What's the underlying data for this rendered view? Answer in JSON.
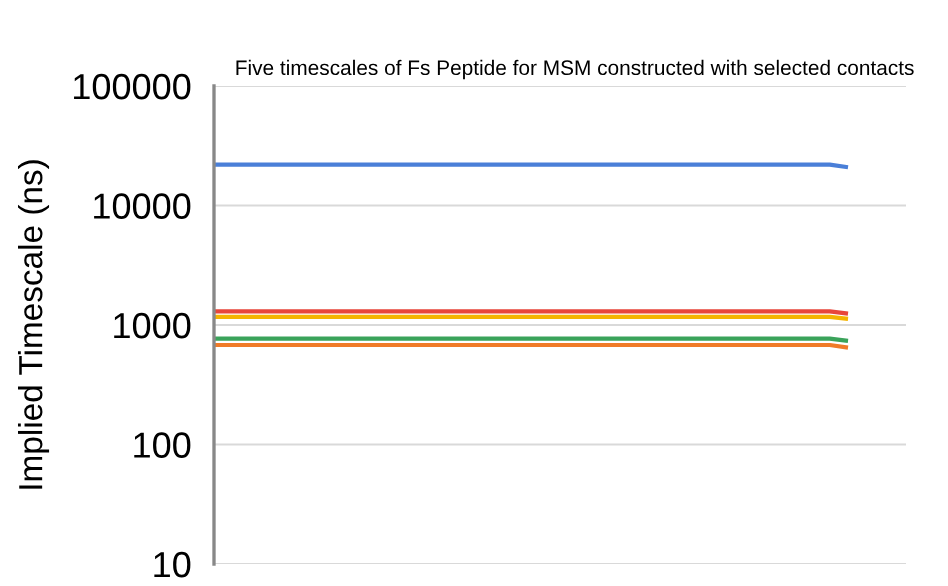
{
  "chart_data": {
    "type": "line",
    "title": "Five timescales of Fs Peptide for MSM constructed with selected contacts",
    "ylabel": "Implied Timescale (ns)",
    "categories": [
      null,
      null,
      null,
      null,
      null,
      null,
      null,
      null,
      null,
      null,
      null,
      null,
      null,
      null,
      null,
      null,
      null,
      null,
      null,
      null,
      null,
      null,
      null,
      null,
      null,
      null,
      null,
      null,
      null,
      null,
      null,
      null,
      null,
      null,
      null,
      null,
      null,
      null,
      null,
      null
    ],
    "series": [
      {
        "color": "#4a7fd8",
        "values": [
          22000,
          22000,
          22000,
          22000,
          22000,
          22000,
          22000,
          22000,
          22000,
          22000,
          22000,
          22000,
          22000,
          22000,
          22000,
          22000,
          22000,
          22000,
          22000,
          22000,
          22000,
          22000,
          22000,
          22000,
          22000,
          22000,
          22000,
          22000,
          22000,
          22000,
          22000,
          22000,
          22000,
          22000,
          22000,
          22000,
          22000,
          22000,
          22000,
          21000
        ]
      },
      {
        "color": "#e8463a",
        "values": [
          1300,
          1300,
          1300,
          1300,
          1300,
          1300,
          1300,
          1300,
          1300,
          1300,
          1300,
          1300,
          1300,
          1300,
          1300,
          1300,
          1300,
          1300,
          1300,
          1300,
          1300,
          1300,
          1300,
          1300,
          1300,
          1300,
          1300,
          1300,
          1300,
          1300,
          1300,
          1300,
          1300,
          1300,
          1300,
          1300,
          1300,
          1300,
          1300,
          1250
        ]
      },
      {
        "color": "#f4b400",
        "values": [
          1170,
          1170,
          1170,
          1170,
          1170,
          1170,
          1170,
          1170,
          1170,
          1170,
          1170,
          1170,
          1170,
          1170,
          1170,
          1170,
          1170,
          1170,
          1170,
          1170,
          1170,
          1170,
          1170,
          1170,
          1170,
          1170,
          1170,
          1170,
          1170,
          1170,
          1170,
          1170,
          1170,
          1170,
          1170,
          1170,
          1170,
          1170,
          1170,
          1130
        ]
      },
      {
        "color": "#3aa35a",
        "values": [
          770,
          770,
          770,
          770,
          770,
          770,
          770,
          770,
          770,
          770,
          770,
          770,
          770,
          770,
          770,
          770,
          770,
          770,
          770,
          770,
          770,
          770,
          770,
          770,
          770,
          770,
          770,
          770,
          770,
          770,
          770,
          770,
          770,
          770,
          770,
          770,
          770,
          770,
          770,
          740
        ]
      },
      {
        "color": "#f07b28",
        "values": [
          680,
          680,
          680,
          680,
          680,
          680,
          680,
          680,
          680,
          680,
          680,
          680,
          680,
          680,
          680,
          680,
          680,
          680,
          680,
          680,
          680,
          680,
          680,
          680,
          680,
          680,
          680,
          680,
          680,
          680,
          680,
          680,
          680,
          680,
          680,
          680,
          680,
          680,
          680,
          650
        ]
      }
    ],
    "log": "y",
    "ylim": [
      10,
      100000
    ],
    "yticks": [
      10,
      100,
      1000,
      10000,
      100000
    ],
    "grid": "y",
    "tick_labels": "y",
    "legend": false
  }
}
